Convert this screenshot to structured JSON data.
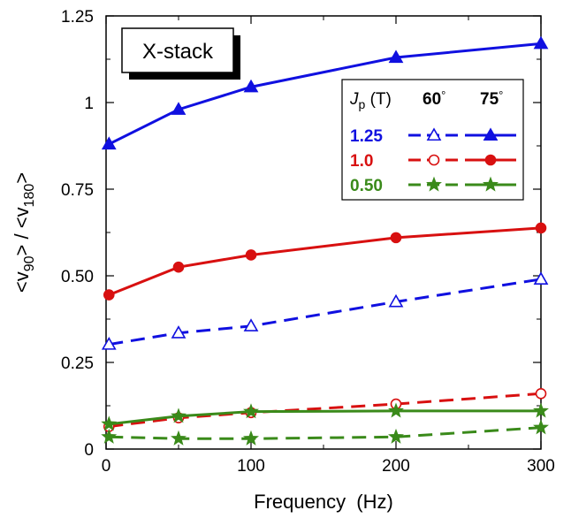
{
  "chart_data": {
    "type": "line",
    "xlabel": "Frequency  (Hz)",
    "ylabel": {
      "main": "<v",
      "sub1": "90",
      "mid": "> / <v",
      "sub2": "180",
      "end": ">"
    },
    "annotation": "X-stack",
    "xlim": [
      0,
      300
    ],
    "ylim": [
      0,
      1.25
    ],
    "xticks": [
      0,
      100,
      200,
      300
    ],
    "xtick_labels": [
      "0",
      "100",
      "200",
      "300"
    ],
    "yticks": [
      0,
      0.25,
      0.5,
      0.75,
      1,
      1.25
    ],
    "ytick_labels": [
      "0",
      "0.25",
      "0.50",
      "0.75",
      "1",
      "1.25"
    ],
    "grid": false,
    "legend": {
      "placement": "top-right",
      "header": {
        "symbol": "J",
        "sub": "p",
        "unit": " (T)",
        "col1": "60",
        "col2": "75",
        "degree": "°"
      },
      "rows": [
        {
          "label": "1.25",
          "color": "#1010e0",
          "marker": "triangle"
        },
        {
          "label": "1.0",
          "color": "#d81010",
          "marker": "circle"
        },
        {
          "label": "0.50",
          "color": "#3a8a1a",
          "marker": "star"
        }
      ]
    },
    "series": [
      {
        "jp": "1.25",
        "angle": "75°",
        "color": "#1010e0",
        "marker": "triangle",
        "filled": true,
        "dashed": false,
        "x": [
          2,
          50,
          100,
          200,
          300
        ],
        "y": [
          0.88,
          0.98,
          1.045,
          1.13,
          1.17
        ]
      },
      {
        "jp": "1.0",
        "angle": "75°",
        "color": "#d81010",
        "marker": "circle",
        "filled": true,
        "dashed": false,
        "x": [
          2,
          50,
          100,
          200,
          300
        ],
        "y": [
          0.445,
          0.525,
          0.56,
          0.61,
          0.638
        ]
      },
      {
        "jp": "1.25",
        "angle": "60°",
        "color": "#1010e0",
        "marker": "triangle",
        "filled": false,
        "dashed": true,
        "x": [
          2,
          50,
          100,
          200,
          300
        ],
        "y": [
          0.302,
          0.335,
          0.355,
          0.425,
          0.49
        ]
      },
      {
        "jp": "1.0",
        "angle": "60°",
        "color": "#d81010",
        "marker": "circle",
        "filled": false,
        "dashed": true,
        "x": [
          2,
          50,
          100,
          200,
          300
        ],
        "y": [
          0.065,
          0.09,
          0.105,
          0.13,
          0.16
        ]
      },
      {
        "jp": "0.50",
        "angle": "75°",
        "color": "#3a8a1a",
        "marker": "star",
        "filled": true,
        "dashed": false,
        "x": [
          2,
          50,
          100,
          200,
          300
        ],
        "y": [
          0.072,
          0.095,
          0.108,
          0.11,
          0.11
        ]
      },
      {
        "jp": "0.50",
        "angle": "60°",
        "color": "#3a8a1a",
        "marker": "star",
        "filled": true,
        "dashed": true,
        "x": [
          2,
          50,
          100,
          200,
          300
        ],
        "y": [
          0.035,
          0.03,
          0.03,
          0.035,
          0.062
        ]
      }
    ]
  }
}
